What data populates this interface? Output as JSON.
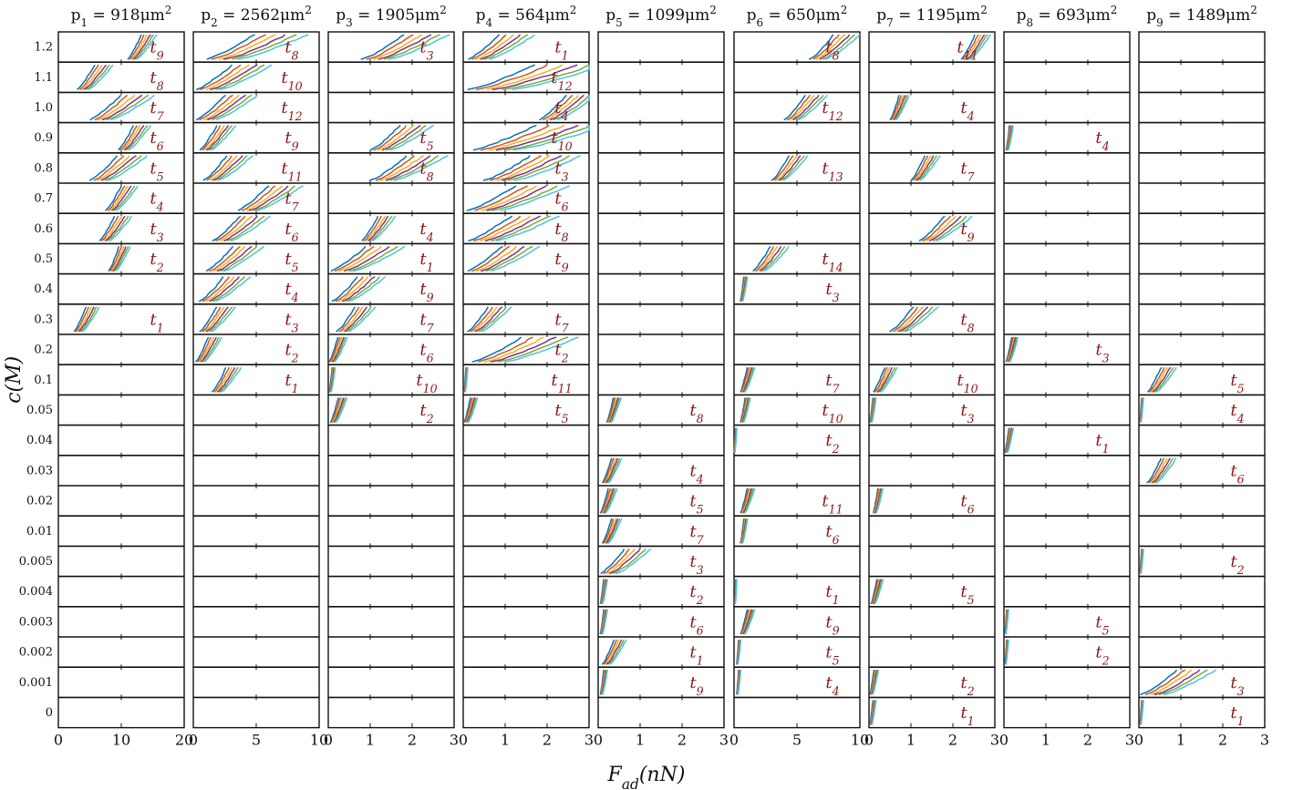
{
  "chart_data": {
    "type": "line",
    "description_free": true,
    "xlabel": "F_ad(nN)",
    "ylabel": "c(M)",
    "row_labels": [
      "1.2",
      "1.1",
      "1.0",
      "0.9",
      "0.8",
      "0.7",
      "0.6",
      "0.5",
      "0.4",
      "0.3",
      "0.2",
      "0.1",
      "0.05",
      "0.04",
      "0.03",
      "0.02",
      "0.01",
      "0.005",
      "0.004",
      "0.003",
      "0.002",
      "0.001",
      "0"
    ],
    "series_colors": [
      "#0072bd",
      "#d95319",
      "#edb120",
      "#7e2f8e",
      "#77ac30",
      "#4dbeee"
    ],
    "label_color": "#8b1a1a",
    "panels": [
      {
        "title": "p_1 = 918μm^2",
        "xlim": [
          0,
          20
        ],
        "xticks": [
          0,
          10,
          20
        ],
        "rows": {
          "1.2": {
            "t": "t_9",
            "s": 11,
            "e": 15
          },
          "1.1": {
            "t": "t_8",
            "s": 3,
            "e": 8
          },
          "1.0": {
            "t": "t_7",
            "s": 5,
            "e": 14
          },
          "0.9": {
            "t": "t_6",
            "s": 9.5,
            "e": 14
          },
          "0.8": {
            "t": "t_5",
            "s": 5,
            "e": 13
          },
          "0.7": {
            "t": "t_4",
            "s": 7.5,
            "e": 12
          },
          "0.6": {
            "t": "t_3",
            "s": 6.5,
            "e": 11
          },
          "0.5": {
            "t": "t_2",
            "s": 8,
            "e": 11
          },
          "0.3": {
            "t": "t_1",
            "s": 2.5,
            "e": 6
          }
        }
      },
      {
        "title": "p_2 = 2562μm^2",
        "xlim": [
          0,
          10
        ],
        "xticks": [
          0,
          5,
          10
        ],
        "rows": {
          "1.2": {
            "t": "t_8",
            "s": 1,
            "e": 8
          },
          "1.1": {
            "t": "t_10",
            "s": 0.2,
            "e": 5.5
          },
          "1.0": {
            "t": "t_12",
            "s": 0.2,
            "e": 4.5
          },
          "0.9": {
            "t": "t_9",
            "s": 0.5,
            "e": 3
          },
          "0.8": {
            "t": "t_11",
            "s": 0.8,
            "e": 4.2
          },
          "0.7": {
            "t": "t_7",
            "s": 3.5,
            "e": 8
          },
          "0.6": {
            "t": "t_6",
            "s": 1.5,
            "e": 5.5
          },
          "0.5": {
            "t": "t_5",
            "s": 1,
            "e": 5
          },
          "0.4": {
            "t": "t_4",
            "s": 0.5,
            "e": 4
          },
          "0.3": {
            "t": "t_3",
            "s": 0.5,
            "e": 3
          },
          "0.2": {
            "t": "t_2",
            "s": 0.2,
            "e": 2
          },
          "0.1": {
            "t": "t_1",
            "s": 1.5,
            "e": 3.5
          }
        }
      },
      {
        "title": "p_3 = 1905μm^2",
        "xlim": [
          0,
          3
        ],
        "xticks": [
          0,
          1,
          2,
          3
        ],
        "rows": {
          "1.2": {
            "t": "t_3",
            "s": 0.8,
            "e": 2.6
          },
          "0.9": {
            "t": "t_5",
            "s": 1,
            "e": 2.3
          },
          "0.8": {
            "t": "t_8",
            "s": 1,
            "e": 2.6
          },
          "0.6": {
            "t": "t_4",
            "s": 0.8,
            "e": 1.5
          },
          "0.5": {
            "t": "t_1",
            "s": 0.05,
            "e": 1.6
          },
          "0.4": {
            "t": "t_9",
            "s": 0.1,
            "e": 1.2
          },
          "0.3": {
            "t": "t_7",
            "s": 0.2,
            "e": 1
          },
          "0.2": {
            "t": "t_6",
            "s": 0.02,
            "e": 0.4
          },
          "0.1": {
            "t": "t_10",
            "s": 0.02,
            "e": 0.15
          },
          "0.05": {
            "t": "t_2",
            "s": 0.05,
            "e": 0.4
          }
        }
      },
      {
        "title": "p_4 = 564μm^2",
        "xlim": [
          0,
          3
        ],
        "xticks": [
          0,
          1,
          2,
          3
        ],
        "rows": {
          "1.2": {
            "t": "t_1",
            "s": 0.1,
            "e": 1.5
          },
          "1.1": {
            "t": "t_12",
            "s": 0.1,
            "e": 3
          },
          "1.0": {
            "t": "t_4",
            "s": 1.8,
            "e": 3
          },
          "0.9": {
            "t": "t_10",
            "s": 0.2,
            "e": 3
          },
          "0.8": {
            "t": "t_3",
            "s": 0.5,
            "e": 2.5
          },
          "0.7": {
            "t": "t_6",
            "s": 0.1,
            "e": 2.2
          },
          "0.6": {
            "t": "t_8",
            "s": 0.1,
            "e": 2
          },
          "0.5": {
            "t": "t_9",
            "s": 0.1,
            "e": 1.6
          },
          "0.3": {
            "t": "t_7",
            "s": 0.1,
            "e": 1
          },
          "0.2": {
            "t": "t_2",
            "s": 0.2,
            "e": 2.4
          },
          "0.1": {
            "t": "t_11",
            "s": 0.02,
            "e": 0.1
          },
          "0.05": {
            "t": "t_5",
            "s": 0.02,
            "e": 0.3
          }
        }
      },
      {
        "title": "p_5 = 1099μm^2",
        "xlim": [
          0,
          3
        ],
        "xticks": [
          0,
          1,
          2,
          3
        ],
        "rows": {
          "0.05": {
            "t": "t_8",
            "s": 0.2,
            "e": 0.5
          },
          "0.03": {
            "t": "t_4",
            "s": 0.1,
            "e": 0.5
          },
          "0.02": {
            "t": "t_5",
            "s": 0.05,
            "e": 0.4
          },
          "0.01": {
            "t": "t_7",
            "s": 0.1,
            "e": 0.5
          },
          "0.005": {
            "t": "t_3",
            "s": 0.05,
            "e": 1.1
          },
          "0.004": {
            "t": "t_2",
            "s": 0.05,
            "e": 0.2
          },
          "0.003": {
            "t": "t_6",
            "s": 0.05,
            "e": 0.2
          },
          "0.002": {
            "t": "t_1",
            "s": 0.1,
            "e": 0.6
          },
          "0.001": {
            "t": "t_9",
            "s": 0.05,
            "e": 0.2
          }
        }
      },
      {
        "title": "p_6 = 650μm^2",
        "xlim": [
          0,
          10
        ],
        "xticks": [
          0,
          5,
          10
        ],
        "rows": {
          "1.2": {
            "t": "t_8",
            "s": 6,
            "e": 9.5
          },
          "1.0": {
            "t": "t_12",
            "s": 4,
            "e": 7
          },
          "0.8": {
            "t": "t_13",
            "s": 3,
            "e": 5.5
          },
          "0.5": {
            "t": "t_14",
            "s": 1.5,
            "e": 4
          },
          "0.4": {
            "t": "t_3",
            "s": 0.5,
            "e": 1
          },
          "0.1": {
            "t": "t_7",
            "s": 0.5,
            "e": 1.5
          },
          "0.05": {
            "t": "t_10",
            "s": 0.5,
            "e": 1.2
          },
          "0.04": {
            "t": "t_2",
            "s": 0,
            "e": 0.2
          },
          "0.02": {
            "t": "t_11",
            "s": 0.5,
            "e": 1.5
          },
          "0.01": {
            "t": "t_6",
            "s": 0.5,
            "e": 1
          },
          "0.004": {
            "t": "t_1",
            "s": 0.05,
            "e": 0.2
          },
          "0.003": {
            "t": "t_9",
            "s": 0.5,
            "e": 1.5
          },
          "0.002": {
            "t": "t_5",
            "s": 0.2,
            "e": 0.5
          },
          "0.001": {
            "t": "t_4",
            "s": 0.2,
            "e": 0.5
          }
        }
      },
      {
        "title": "p_7 = 1195μm^2",
        "xlim": [
          0,
          3
        ],
        "xticks": [
          0,
          1,
          2,
          3
        ],
        "rows": {
          "1.2": {
            "t": "t_11",
            "s": 2.2,
            "e": 2.8
          },
          "1.0": {
            "t": "t_4",
            "s": 0.5,
            "e": 0.9
          },
          "0.8": {
            "t": "t_7",
            "s": 1,
            "e": 1.6
          },
          "0.6": {
            "t": "t_9",
            "s": 1.2,
            "e": 2.3
          },
          "0.3": {
            "t": "t_8",
            "s": 0.5,
            "e": 1.5
          },
          "0.1": {
            "t": "t_10",
            "s": 0.1,
            "e": 0.6
          },
          "0.05": {
            "t": "t_3",
            "s": 0.02,
            "e": 0.15
          },
          "0.02": {
            "t": "t_6",
            "s": 0.1,
            "e": 0.3
          },
          "0.004": {
            "t": "t_5",
            "s": 0.05,
            "e": 0.3
          },
          "0.001": {
            "t": "t_2",
            "s": 0.02,
            "e": 0.2
          },
          "0": {
            "t": "t_1",
            "s": 0.02,
            "e": 0.15
          }
        }
      },
      {
        "title": "p_8 = 693μm^2",
        "xlim": [
          0,
          3
        ],
        "xticks": [
          0,
          1,
          2,
          3
        ],
        "rows": {
          "0.9": {
            "t": "t_4",
            "s": 0.05,
            "e": 0.2
          },
          "0.2": {
            "t": "t_3",
            "s": 0.05,
            "e": 0.3
          },
          "0.04": {
            "t": "t_1",
            "s": 0.02,
            "e": 0.2
          },
          "0.003": {
            "t": "t_5",
            "s": 0.02,
            "e": 0.1
          },
          "0.002": {
            "t": "t_2",
            "s": 0.02,
            "e": 0.1
          }
        }
      },
      {
        "title": "p_9 = 1489μm^2",
        "xlim": [
          0,
          3
        ],
        "xticks": [
          0,
          1,
          2,
          3
        ],
        "rows": {
          "0.1": {
            "t": "t_5",
            "s": 0.2,
            "e": 0.8
          },
          "0.05": {
            "t": "t_4",
            "s": 0.02,
            "e": 0.1
          },
          "0.03": {
            "t": "t_6",
            "s": 0.2,
            "e": 0.8
          },
          "0.005": {
            "t": "t_2",
            "s": 0.02,
            "e": 0.1
          },
          "0.001": {
            "t": "t_3",
            "s": 0.05,
            "e": 1.6
          },
          "0": {
            "t": "t_1",
            "s": 0.02,
            "e": 0.1
          }
        }
      }
    ]
  }
}
